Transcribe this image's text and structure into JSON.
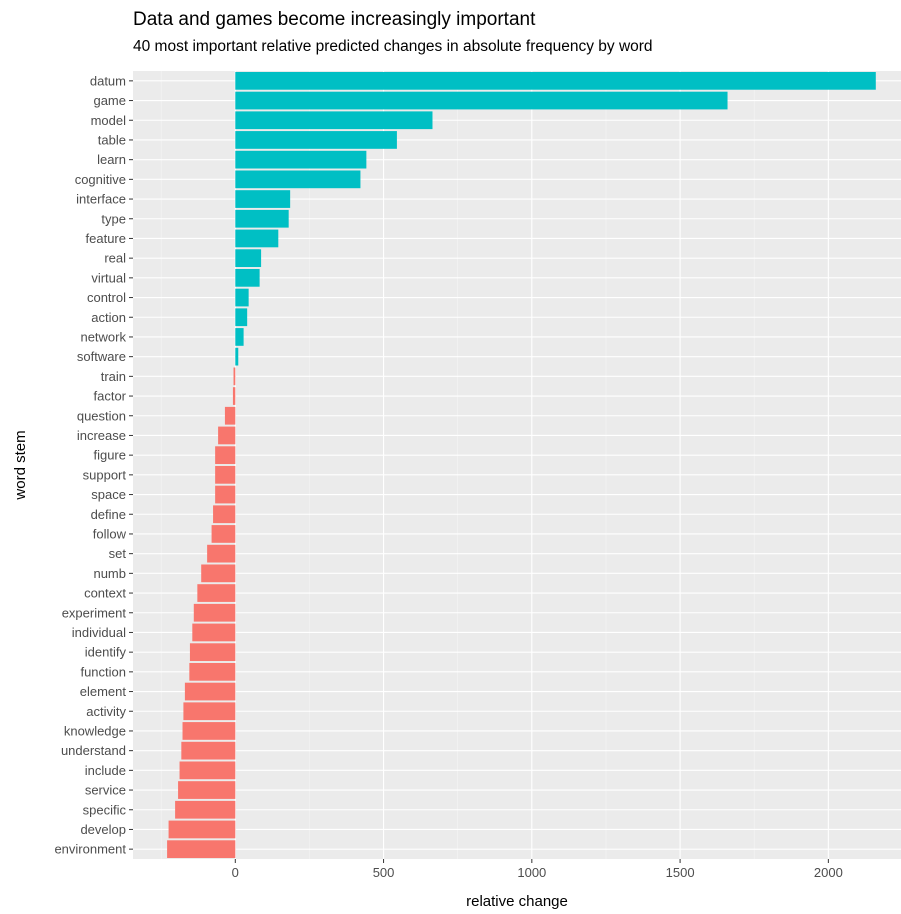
{
  "chart_data": {
    "type": "bar",
    "orientation": "horizontal",
    "title": "Data and games become increasingly important",
    "subtitle": "40 most important relative predicted changes in absolute frequency by word",
    "xlabel": "relative change",
    "ylabel": "word stem",
    "xlim": [
      -345,
      2245
    ],
    "x_ticks": [
      0,
      500,
      1000,
      1500,
      2000
    ],
    "x_tick_labels": [
      "0",
      "500",
      "1000",
      "1500",
      "2000"
    ],
    "grid": true,
    "legend": "none",
    "colors": {
      "positive": "#00BFC4",
      "negative": "#F8766D",
      "panel_background": "#EBEBEB",
      "grid_major": "#FFFFFF",
      "grid_minor": "#F5F5F5"
    },
    "categories": [
      "datum",
      "game",
      "model",
      "table",
      "learn",
      "cognitive",
      "interface",
      "type",
      "feature",
      "real",
      "virtual",
      "control",
      "action",
      "network",
      "software",
      "train",
      "factor",
      "question",
      "increase",
      "figure",
      "support",
      "space",
      "define",
      "follow",
      "set",
      "numb",
      "context",
      "experiment",
      "individual",
      "identify",
      "function",
      "element",
      "activity",
      "knowledge",
      "understand",
      "include",
      "service",
      "specific",
      "develop",
      "environment"
    ],
    "values": [
      2160,
      1660,
      665,
      545,
      442,
      422,
      185,
      180,
      145,
      87,
      82,
      45,
      40,
      28,
      10,
      -6,
      -8,
      -35,
      -58,
      -68,
      -68,
      -68,
      -75,
      -80,
      -95,
      -115,
      -128,
      -140,
      -145,
      -153,
      -155,
      -170,
      -175,
      -178,
      -182,
      -188,
      -193,
      -203,
      -225,
      -230
    ]
  }
}
